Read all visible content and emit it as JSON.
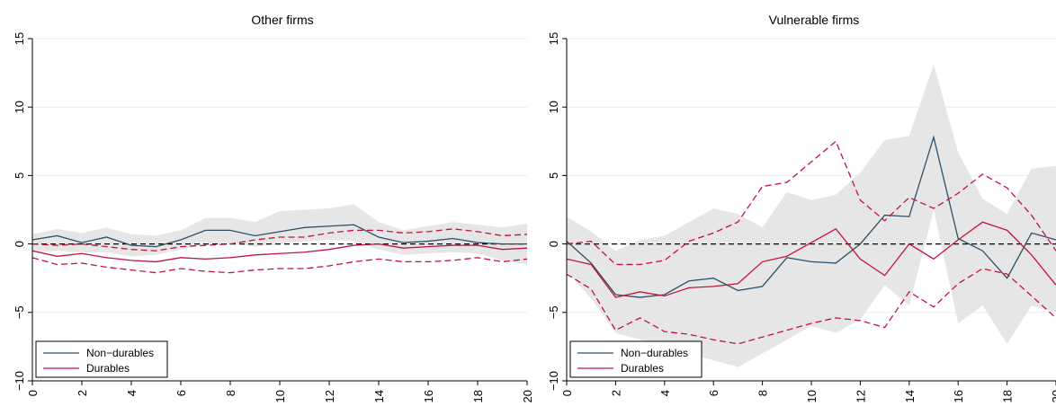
{
  "colors": {
    "nondurables": "#2d4f6a",
    "durables": "#c4123f",
    "ci_fill": "#e6e6e6",
    "grid": "#e8eef3",
    "zero_line": "#000000"
  },
  "legend": {
    "series1": "Non−durables",
    "series2": "Durables"
  },
  "chart_data": [
    {
      "type": "line",
      "title": "Other firms",
      "xlabel": "",
      "ylabel": "",
      "xlim": [
        0,
        20
      ],
      "ylim": [
        -10,
        15
      ],
      "xticks": [
        0,
        2,
        4,
        6,
        8,
        10,
        12,
        14,
        16,
        18,
        20
      ],
      "yticks": [
        -10,
        -5,
        0,
        5,
        10,
        15
      ],
      "ytick_labels": [
        "−10",
        "−5",
        "0",
        "5",
        "10",
        "15"
      ],
      "grid": true,
      "legend_position": "bottom-left",
      "x": [
        0,
        1,
        2,
        3,
        4,
        5,
        6,
        7,
        8,
        9,
        10,
        11,
        12,
        13,
        14,
        15,
        16,
        17,
        18,
        19,
        20
      ],
      "series": [
        {
          "name": "Non−durables",
          "style": "solid",
          "values": [
            0.3,
            0.6,
            0.1,
            0.5,
            -0.1,
            -0.2,
            0.3,
            1.0,
            1.0,
            0.6,
            0.9,
            1.2,
            1.3,
            1.4,
            0.5,
            0.1,
            0.2,
            0.4,
            0.1,
            0.0,
            0.0
          ],
          "ci_lower": [
            -0.6,
            -0.5,
            -0.6,
            -0.6,
            -0.9,
            -0.8,
            -0.4,
            0.0,
            0.1,
            -0.2,
            0.0,
            0.2,
            0.3,
            0.2,
            -0.4,
            -0.8,
            -0.7,
            -0.6,
            -0.7,
            -1.2,
            -1.5
          ],
          "ci_upper": [
            0.7,
            1.1,
            0.8,
            1.2,
            0.7,
            0.6,
            1.0,
            1.9,
            1.9,
            1.6,
            2.4,
            2.5,
            2.6,
            2.9,
            1.6,
            1.0,
            1.3,
            1.6,
            1.4,
            1.2,
            1.5
          ]
        },
        {
          "name": "Durables",
          "style": "solid",
          "values": [
            -0.5,
            -0.9,
            -0.7,
            -1.0,
            -1.2,
            -1.3,
            -1.0,
            -1.1,
            -1.0,
            -0.8,
            -0.7,
            -0.6,
            -0.4,
            -0.1,
            0.0,
            -0.3,
            -0.2,
            -0.1,
            -0.1,
            -0.4,
            -0.3
          ]
        },
        {
          "name": "Durables upper band",
          "style": "dashed",
          "values": [
            0.0,
            -0.1,
            0.0,
            -0.2,
            -0.4,
            -0.5,
            -0.2,
            -0.1,
            0.0,
            0.3,
            0.5,
            0.5,
            0.8,
            1.0,
            1.0,
            0.8,
            0.9,
            1.1,
            0.9,
            0.6,
            0.7
          ]
        },
        {
          "name": "Durables lower band",
          "style": "dashed",
          "values": [
            -1.0,
            -1.5,
            -1.4,
            -1.7,
            -1.9,
            -2.1,
            -1.8,
            -2.0,
            -2.1,
            -1.9,
            -1.8,
            -1.8,
            -1.6,
            -1.3,
            -1.1,
            -1.3,
            -1.3,
            -1.2,
            -1.0,
            -1.3,
            -1.1
          ]
        }
      ]
    },
    {
      "type": "line",
      "title": "Vulnerable firms",
      "xlabel": "",
      "ylabel": "",
      "xlim": [
        0,
        20
      ],
      "ylim": [
        -10,
        15
      ],
      "xticks": [
        0,
        2,
        4,
        6,
        8,
        10,
        12,
        14,
        16,
        18,
        20
      ],
      "yticks": [
        -10,
        -5,
        0,
        5,
        10,
        15
      ],
      "ytick_labels": [
        "−10",
        "−5",
        "0",
        "5",
        "10",
        "15"
      ],
      "grid": true,
      "legend_position": "bottom-left",
      "x": [
        0,
        1,
        2,
        3,
        4,
        5,
        6,
        7,
        8,
        9,
        10,
        11,
        12,
        13,
        14,
        15,
        16,
        17,
        18,
        19,
        20
      ],
      "series": [
        {
          "name": "Non−durables",
          "style": "solid",
          "values": [
            0.2,
            -1.4,
            -3.7,
            -3.9,
            -3.7,
            -2.7,
            -2.5,
            -3.4,
            -3.1,
            -1.0,
            -1.3,
            -1.4,
            0.0,
            2.1,
            2.0,
            7.8,
            0.4,
            -0.5,
            -2.5,
            0.8,
            0.3
          ],
          "ci_lower": [
            -2.0,
            -4.0,
            -6.5,
            -7.0,
            -7.5,
            -8.0,
            -8.5,
            -9.0,
            -8.0,
            -7.0,
            -6.0,
            -6.5,
            -5.5,
            -3.0,
            -4.5,
            2.5,
            -5.8,
            -4.5,
            -7.3,
            -4.5,
            -5.0
          ],
          "ci_upper": [
            2.0,
            0.9,
            -0.5,
            0.3,
            0.6,
            1.6,
            2.6,
            2.2,
            1.2,
            3.8,
            3.2,
            3.6,
            5.2,
            7.6,
            7.9,
            13.1,
            6.7,
            3.3,
            2.2,
            5.5,
            5.7
          ]
        },
        {
          "name": "Durables",
          "style": "solid",
          "values": [
            -1.1,
            -1.5,
            -3.9,
            -3.5,
            -3.8,
            -3.2,
            -3.1,
            -2.9,
            -1.3,
            -0.9,
            0.1,
            1.1,
            -1.1,
            -2.3,
            0.0,
            -1.1,
            0.3,
            1.6,
            1.0,
            -0.8,
            -3.0
          ]
        },
        {
          "name": "Durables upper band",
          "style": "dashed",
          "values": [
            0.0,
            0.2,
            -1.5,
            -1.5,
            -1.2,
            0.2,
            0.8,
            1.6,
            4.2,
            4.5,
            6.0,
            7.5,
            3.2,
            1.7,
            3.4,
            2.6,
            3.7,
            5.1,
            4.1,
            2.1,
            -0.5
          ]
        },
        {
          "name": "Durables lower band",
          "style": "dashed",
          "values": [
            -2.2,
            -3.3,
            -6.3,
            -5.4,
            -6.4,
            -6.6,
            -7.0,
            -7.3,
            -6.8,
            -6.3,
            -5.8,
            -5.4,
            -5.6,
            -6.1,
            -3.5,
            -4.6,
            -2.9,
            -1.8,
            -2.2,
            -3.8,
            -5.4
          ]
        }
      ]
    }
  ]
}
